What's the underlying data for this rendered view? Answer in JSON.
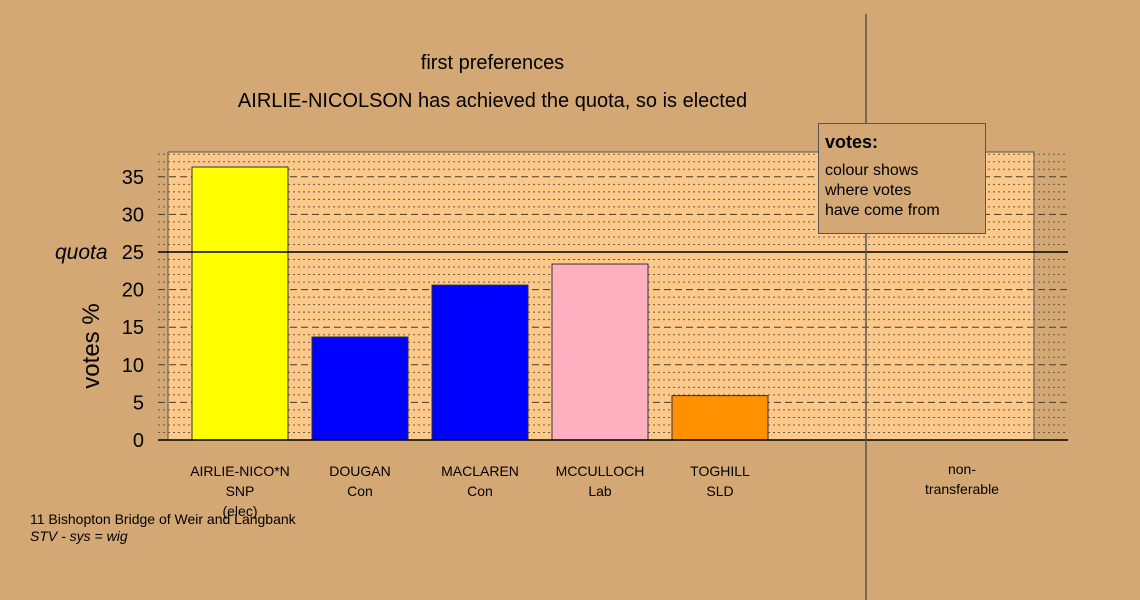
{
  "titles": {
    "line1": "first preferences",
    "line2": "AIRLIE-NICOLSON has achieved the quota, so is elected"
  },
  "legend": {
    "title": "votes:",
    "lines": [
      "colour shows",
      "where votes",
      "have come from"
    ]
  },
  "footer": {
    "line1": "11 Bishopton Bridge of Weir and Langbank",
    "line2": "STV - sys = wig"
  },
  "colors": {
    "background": "#d4a875",
    "plot_background": "#fdc98b",
    "quota_line": "#000000"
  },
  "chart_data": {
    "type": "bar",
    "ylabel": "votes %",
    "ylim": [
      0,
      38.5
    ],
    "yticks": [
      0,
      5,
      10,
      15,
      20,
      25,
      30,
      35
    ],
    "quota": {
      "label": "quota",
      "value": 25
    },
    "categories": [
      {
        "lines": [
          "AIRLIE-NICO*N",
          "SNP",
          "(elec)"
        ],
        "value": 36.3,
        "color": "#ffff00"
      },
      {
        "lines": [
          "DOUGAN",
          "Con"
        ],
        "value": 13.7,
        "color": "#0000ff"
      },
      {
        "lines": [
          "MACLAREN",
          "Con"
        ],
        "value": 20.6,
        "color": "#0000ff"
      },
      {
        "lines": [
          "MCCULLOCH",
          "Lab"
        ],
        "value": 23.4,
        "color": "#ffb0c0"
      },
      {
        "lines": [
          "TOGHILL",
          "SLD"
        ],
        "value": 5.9,
        "color": "#ff9000"
      }
    ],
    "nontransferable": {
      "lines": [
        "non-",
        "transferable"
      ],
      "value": 0
    }
  }
}
